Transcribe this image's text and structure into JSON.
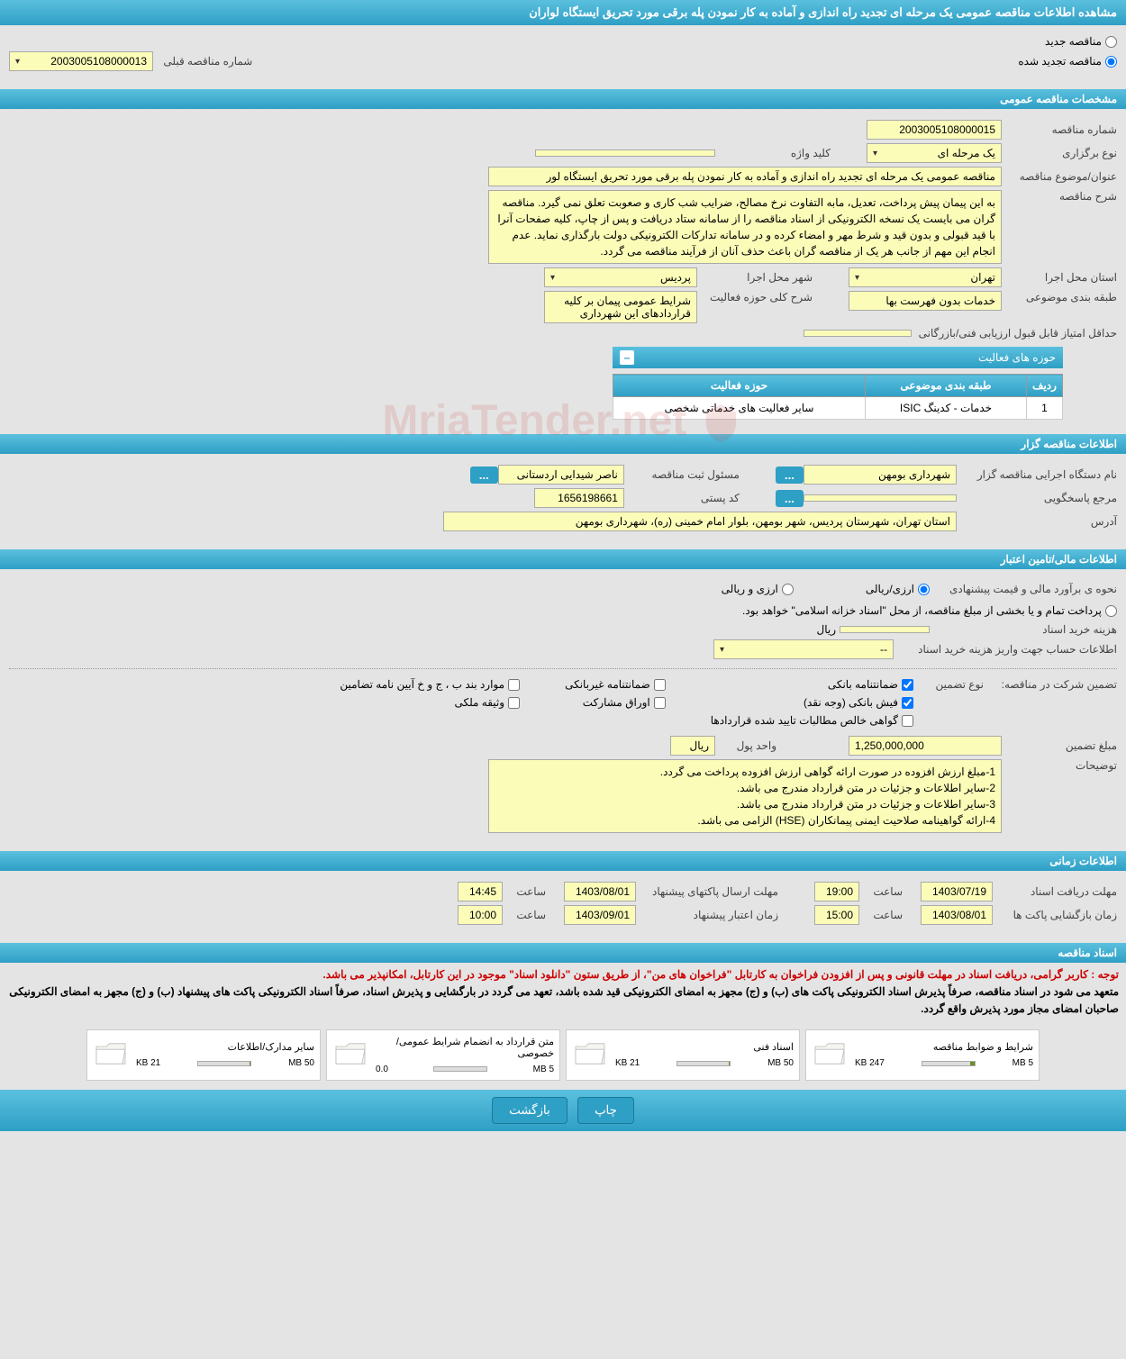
{
  "page_title": "مشاهده اطلاعات مناقصه عمومی یک مرحله ای تجدید راه اندازی و آماده به کار نمودن پله برقی مورد تحریق ایستگاه لواران",
  "radio_new": "مناقصه جدید",
  "radio_renewed": "مناقصه تجدید شده",
  "prev_number_label": "شماره مناقصه قبلی",
  "prev_number": "2003005108000013",
  "sections": {
    "general": "مشخصات مناقصه عمومی",
    "organizer": "اطلاعات مناقصه گزار",
    "financial": "اطلاعات مالی/تامین اعتبار",
    "timing": "اطلاعات زمانی",
    "docs": "اسناد مناقصه"
  },
  "general": {
    "number_label": "شماره مناقصه",
    "number": "2003005108000015",
    "type_label": "نوع برگزاری",
    "type": "یک مرحله ای",
    "subject_label": "عنوان/موضوع مناقصه",
    "subject": "مناقصه عمومی یک مرحله ای تجدید راه اندازی و آماده به کار نمودن پله برقی مورد تحریق ایستگاه لور",
    "keyword_label": "کلید واژه",
    "keyword": "",
    "desc_label": "شرح مناقصه",
    "desc": "به این پیمان پیش پرداخت، تعدیل، مابه التفاوت نرخ مصالح، ضرایب شب کاری و صعوبت تعلق نمی گیرد. مناقصه گران می بایست یک نسخه الکترونیکی از اسناد مناقصه را از سامانه ستاد دریافت و پس از چاپ، کلیه صفحات آنرا با قید قبولی و بدون قید و شرط مهر و امضاء کرده و در سامانه تدارکات الکترونیکی دولت بارگذاری نماید. عدم انجام این مهم از جانب هر یک از مناقصه گران باعث حذف آنان از فرآیند مناقصه می گردد.",
    "province_label": "استان محل اجرا",
    "province": "تهران",
    "city_label": "شهر محل اجرا",
    "city": "پردیس",
    "category_label": "طبقه بندی موضوعی",
    "category": "خدمات بدون فهرست بها",
    "activity_desc_label": "شرح کلی حوزه فعالیت",
    "activity_desc": "شرایط عمومی پیمان بر کلیه قراردادهای این شهرداری",
    "min_score_label": "حداقل امتیاز قابل قبول ارزیابی فنی/بازرگانی",
    "min_score": ""
  },
  "activity_table": {
    "title": "حوزه های فعالیت",
    "col_row": "ردیف",
    "col_category": "طبقه بندی موضوعی",
    "col_activity": "حوزه فعالیت",
    "rows": [
      {
        "n": "1",
        "category": "خدمات - کدینگ ISIC",
        "activity": "سایر فعالیت های خدماتی شخصی"
      }
    ]
  },
  "organizer": {
    "exec_label": "نام دستگاه اجرایی مناقصه گزار",
    "exec": "شهرداری بومهن",
    "registrar_label": "مسئول ثبت مناقصه",
    "registrar": "ناصر شیدایی اردستانی",
    "responder_label": "مرجع پاسخگویی",
    "responder": "",
    "postal_label": "کد پستی",
    "postal": "1656198661",
    "address_label": "آدرس",
    "address": "استان تهران، شهرستان پردیس، شهر بومهن، بلوار امام خمینی (ره)، شهرداری بومهن"
  },
  "financial": {
    "estimate_label": "نحوه ی برآورد مالی و قیمت پیشنهادی",
    "opt_rial": "ارزی/ریالی",
    "opt_currency": "ارزی و ریالی",
    "payment_note": "پرداخت تمام و یا بخشی از مبلغ مناقصه، از محل \"اسناد خزانه اسلامی\" خواهد بود.",
    "doc_cost_label": "هزینه خرید اسناد",
    "doc_cost": "",
    "rial_unit": "ریال",
    "account_label": "اطلاعات حساب جهت واریز هزینه خرید اسناد",
    "account": "--",
    "guarantee_intro": "تضمین شرکت در مناقصه:",
    "guarantee_type_label": "نوع تضمین",
    "g1": "ضمانتنامه بانکی",
    "g2": "ضمانتنامه غیربانکی",
    "g3": "موارد بند ب ، ج و خ آیین نامه تضامین",
    "g4": "فیش بانکی (وجه نقد)",
    "g5": "اوراق مشارکت",
    "g6": "وثیقه ملکی",
    "g7": "گواهی خالص مطالبات تایید شده قراردادها",
    "amount_label": "مبلغ تضمین",
    "amount": "1,250,000,000",
    "currency_label": "واحد پول",
    "currency": "ریال",
    "notes_label": "توضیحات",
    "notes": "1-مبلغ ارزش افزوده در صورت ارائه گواهی ارزش افزوده پرداخت می گردد.\n2-سایر اطلاعات و جزئیات در متن قرارداد مندرج می باشد.\n3-سایر اطلاعات و جزئیات در متن قرارداد مندرج می باشد.\n4-ارائه گواهینامه صلاحیت ایمنی پیمانکاران (HSE) الزامی می باشد."
  },
  "timing": {
    "receive_deadline_label": "مهلت دریافت اسناد",
    "receive_date": "1403/07/19",
    "receive_time": "19:00",
    "submit_deadline_label": "مهلت ارسال پاکتهای پیشنهاد",
    "submit_date": "1403/08/01",
    "submit_time": "14:45",
    "open_label": "زمان بازگشایی پاکت ها",
    "open_date": "1403/08/01",
    "open_time": "15:00",
    "validity_label": "زمان اعتبار پیشنهاد",
    "validity_date": "1403/09/01",
    "validity_time": "10:00",
    "hour_label": "ساعت"
  },
  "docs": {
    "notice1": "توجه : کاربر گرامی، دریافت اسناد در مهلت قانونی و پس از افزودن فراخوان به کارتابل \"فراخوان های من\"، از طریق ستون \"دانلود اسناد\" موجود در این کارتابل، امکانپذیر می باشد.",
    "notice2": "متعهد می شود در اسناد مناقصه، صرفاً پذیرش اسناد الکترونیکی پاکت های (ب) و (ج) مجهز به امضای الکترونیکی قید شده باشد، تعهد می گردد در بارگشایی و پذیرش اسناد، صرفاً اسناد الکترونیکی پاکت های پیشنهاد (ب) و (ج) مجهز به امضای الکترونیکی صاحبان امضای مجاز مورد پذیرش واقع گردد.",
    "files": [
      {
        "title": "شرایط و ضوابط مناقصه",
        "size": "247 KB",
        "max": "5 MB",
        "fill": 8
      },
      {
        "title": "اسناد فنی",
        "size": "21 KB",
        "max": "50 MB",
        "fill": 2
      },
      {
        "title": "متن قرارداد به انضمام شرایط عمومی/خصوصی",
        "size": "0.0",
        "max": "5 MB",
        "fill": 0
      },
      {
        "title": "سایر مدارک/اطلاعات",
        "size": "21 KB",
        "max": "50 MB",
        "fill": 2
      }
    ]
  },
  "buttons": {
    "print": "چاپ",
    "back": "بازگشت"
  },
  "watermark": "MriaTender.net"
}
